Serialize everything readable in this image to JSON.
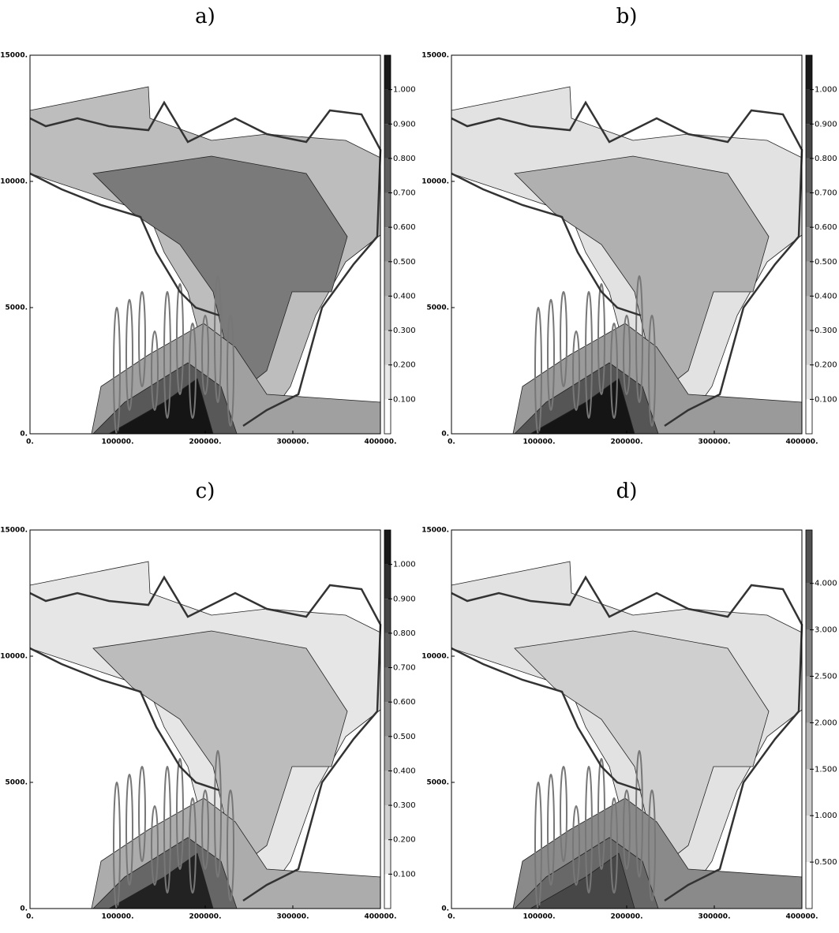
{
  "chart_data": [
    {
      "type": "contour",
      "title": "a)",
      "xlim": [
        0,
        400000
      ],
      "xticks": [
        {
          "value": 0,
          "label": "0."
        },
        {
          "value": 100000,
          "label": "100000."
        },
        {
          "value": 200000,
          "label": "200000."
        },
        {
          "value": 300000,
          "label": "300000."
        },
        {
          "value": 400000,
          "label": "400000."
        }
      ],
      "ylim": [
        0,
        15000
      ],
      "yticks": [
        {
          "value": 0,
          "label": "0."
        },
        {
          "value": 5000,
          "label": "5000."
        },
        {
          "value": 10000,
          "label": "10000."
        },
        {
          "value": 15000,
          "label": "15000."
        }
      ],
      "colorbar": {
        "lim": [
          0,
          1.1
        ],
        "ticks": [
          {
            "value": 0.1,
            "label": "0.100"
          },
          {
            "value": 0.2,
            "label": "0.200"
          },
          {
            "value": 0.3,
            "label": "0.300"
          },
          {
            "value": 0.4,
            "label": "0.400"
          },
          {
            "value": 0.5,
            "label": "0.500"
          },
          {
            "value": 0.6,
            "label": "0.600"
          },
          {
            "value": 0.7,
            "label": "0.700"
          },
          {
            "value": 0.8,
            "label": "0.800"
          },
          {
            "value": 0.9,
            "label": "0.900"
          },
          {
            "value": 1,
            "label": "1.000"
          }
        ]
      }
    },
    {
      "type": "contour",
      "title": "b)",
      "xlim": [
        0,
        400000
      ],
      "xticks": [
        {
          "value": 0,
          "label": "0."
        },
        {
          "value": 100000,
          "label": "100000."
        },
        {
          "value": 200000,
          "label": "200000."
        },
        {
          "value": 300000,
          "label": "300000."
        },
        {
          "value": 400000,
          "label": "400000."
        }
      ],
      "ylim": [
        0,
        15000
      ],
      "yticks": [
        {
          "value": 0,
          "label": "0."
        },
        {
          "value": 5000,
          "label": "5000."
        },
        {
          "value": 10000,
          "label": "10000."
        },
        {
          "value": 15000,
          "label": "15000."
        }
      ],
      "colorbar": {
        "lim": [
          0,
          1.1
        ],
        "ticks": [
          {
            "value": 0.1,
            "label": "0.100"
          },
          {
            "value": 0.2,
            "label": "0.200"
          },
          {
            "value": 0.3,
            "label": "0.300"
          },
          {
            "value": 0.4,
            "label": "0.400"
          },
          {
            "value": 0.5,
            "label": "0.500"
          },
          {
            "value": 0.6,
            "label": "0.600"
          },
          {
            "value": 0.7,
            "label": "0.700"
          },
          {
            "value": 0.8,
            "label": "0.800"
          },
          {
            "value": 0.9,
            "label": "0.900"
          },
          {
            "value": 1,
            "label": "1.000"
          }
        ]
      }
    },
    {
      "type": "contour",
      "title": "c)",
      "xlim": [
        0,
        400000
      ],
      "xticks": [
        {
          "value": 0,
          "label": "0."
        },
        {
          "value": 100000,
          "label": "100000."
        },
        {
          "value": 200000,
          "label": "200000."
        },
        {
          "value": 300000,
          "label": "300000."
        },
        {
          "value": 400000,
          "label": "400000."
        }
      ],
      "ylim": [
        0,
        15000
      ],
      "yticks": [
        {
          "value": 0,
          "label": "0."
        },
        {
          "value": 5000,
          "label": "5000."
        },
        {
          "value": 10000,
          "label": "10000."
        },
        {
          "value": 15000,
          "label": "15000."
        }
      ],
      "colorbar": {
        "lim": [
          0,
          1.1
        ],
        "ticks": [
          {
            "value": 0.1,
            "label": "0.100"
          },
          {
            "value": 0.2,
            "label": "0.200"
          },
          {
            "value": 0.3,
            "label": "0.300"
          },
          {
            "value": 0.4,
            "label": "0.400"
          },
          {
            "value": 0.5,
            "label": "0.500"
          },
          {
            "value": 0.6,
            "label": "0.600"
          },
          {
            "value": 0.7,
            "label": "0.700"
          },
          {
            "value": 0.8,
            "label": "0.800"
          },
          {
            "value": 0.9,
            "label": "0.900"
          },
          {
            "value": 1,
            "label": "1.000"
          }
        ]
      }
    },
    {
      "type": "contour",
      "title": "d)",
      "xlim": [
        0,
        400000
      ],
      "xticks": [
        {
          "value": 0,
          "label": "0."
        },
        {
          "value": 100000,
          "label": "100000."
        },
        {
          "value": 200000,
          "label": "200000."
        },
        {
          "value": 300000,
          "label": "300000."
        },
        {
          "value": 400000,
          "label": "400000."
        }
      ],
      "ylim": [
        0,
        15000
      ],
      "yticks": [
        {
          "value": 0,
          "label": "0."
        },
        {
          "value": 5000,
          "label": "5000."
        },
        {
          "value": 10000,
          "label": "10000."
        },
        {
          "value": 15000,
          "label": "15000."
        }
      ],
      "colorbar": {
        "spacing": "even",
        "ticks": [
          {
            "value": 0.5,
            "label": "0.500"
          },
          {
            "value": 1,
            "label": "1.000"
          },
          {
            "value": 1.5,
            "label": "1.500"
          },
          {
            "value": 2,
            "label": "2.000"
          },
          {
            "value": 2.5,
            "label": "2.500"
          },
          {
            "value": 3,
            "label": "3.000"
          },
          {
            "value": 4,
            "label": "4.000"
          }
        ]
      }
    }
  ]
}
